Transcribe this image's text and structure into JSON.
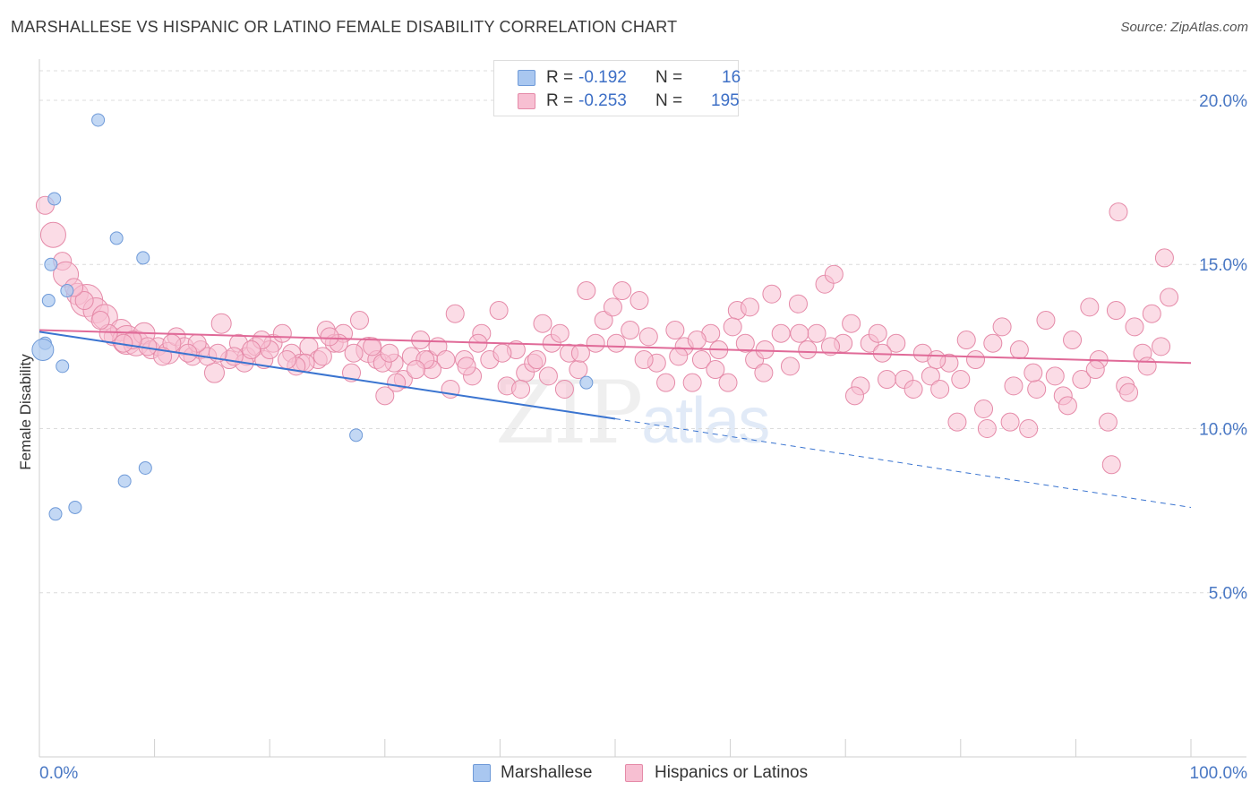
{
  "title": "MARSHALLESE VS HISPANIC OR LATINO FEMALE DISABILITY CORRELATION CHART",
  "source": "Source: ZipAtlas.com",
  "watermark": {
    "zip": "ZIP",
    "atlas": "atlas"
  },
  "legend": {
    "rows": [
      {
        "r_label": "R =",
        "r_value": "-0.192",
        "n_label": "N =",
        "n_value": "16",
        "color": "#a9c7f0",
        "border": "#6f9ad8"
      },
      {
        "r_label": "R =",
        "r_value": "-0.253",
        "n_label": "N =",
        "n_value": "195",
        "color": "#f7bfd2",
        "border": "#e58aa8"
      }
    ]
  },
  "bottom_legend": [
    {
      "label": "Marshallese",
      "color": "#a9c7f0",
      "border": "#6f9ad8"
    },
    {
      "label": "Hispanics or Latinos",
      "color": "#f7bfd2",
      "border": "#e58aa8"
    }
  ],
  "chart_data": {
    "type": "scatter",
    "title": "MARSHALLESE VS HISPANIC OR LATINO FEMALE DISABILITY CORRELATION CHART",
    "xlabel": "",
    "ylabel": "Female Disability",
    "xlim": [
      0,
      100
    ],
    "ylim": [
      0,
      20.9
    ],
    "x_tick_labels": [
      "0.0%",
      "100.0%"
    ],
    "y_ticks": [
      5,
      10,
      15,
      20
    ],
    "y_tick_labels": [
      "5.0%",
      "10.0%",
      "15.0%",
      "20.0%"
    ],
    "grid": "dashed horizontal",
    "legend_position": "top-center",
    "series": [
      {
        "name": "Marshallese",
        "color": "#a9c7f0",
        "stroke": "#6f9ad8",
        "trend": {
          "color": "#3a74d0",
          "x0": 0,
          "y0": 12.95,
          "x1": 50,
          "y1": 10.3,
          "dashed_to_x": 100,
          "dashed_to_y": 7.6
        },
        "points": [
          [
            5.1,
            19.4,
            7
          ],
          [
            1.3,
            17.0,
            7
          ],
          [
            6.7,
            15.8,
            7
          ],
          [
            9.0,
            15.2,
            7
          ],
          [
            1.0,
            15.0,
            7
          ],
          [
            2.4,
            14.2,
            7
          ],
          [
            0.8,
            13.9,
            7
          ],
          [
            0.5,
            12.6,
            7
          ],
          [
            0.3,
            12.4,
            12
          ],
          [
            2.0,
            11.9,
            7
          ],
          [
            47.5,
            11.4,
            7
          ],
          [
            27.5,
            9.8,
            7
          ],
          [
            9.2,
            8.8,
            7
          ],
          [
            7.4,
            8.4,
            7
          ],
          [
            3.1,
            7.6,
            7
          ],
          [
            1.4,
            7.4,
            7
          ]
        ]
      },
      {
        "name": "Hispanics or Latinos",
        "color": "#f7bfd2",
        "stroke": "#e58aa8",
        "trend": {
          "color": "#e06a98",
          "x0": 0,
          "y0": 13.0,
          "x1": 100,
          "y1": 12.0
        },
        "points": [
          [
            0.5,
            16.8,
            10
          ],
          [
            1.2,
            15.9,
            14
          ],
          [
            2.0,
            15.1,
            10
          ],
          [
            2.3,
            14.7,
            14
          ],
          [
            3.3,
            14.1,
            12
          ],
          [
            4.1,
            13.9,
            18
          ],
          [
            4.9,
            13.6,
            14
          ],
          [
            5.7,
            13.4,
            14
          ],
          [
            6.4,
            12.8,
            10
          ],
          [
            7.1,
            13.0,
            12
          ],
          [
            7.6,
            12.7,
            16
          ],
          [
            8.4,
            12.6,
            14
          ],
          [
            9.1,
            12.9,
            12
          ],
          [
            9.7,
            12.4,
            10
          ],
          [
            10.3,
            12.5,
            10
          ],
          [
            11.2,
            12.3,
            12
          ],
          [
            11.9,
            12.8,
            10
          ],
          [
            12.6,
            12.5,
            10
          ],
          [
            13.3,
            12.2,
            10
          ],
          [
            14.0,
            12.4,
            10
          ],
          [
            15.2,
            11.7,
            11
          ],
          [
            15.8,
            13.2,
            11
          ],
          [
            16.5,
            12.1,
            10
          ],
          [
            17.3,
            12.6,
            10
          ],
          [
            18.0,
            12.2,
            10
          ],
          [
            18.8,
            12.5,
            10
          ],
          [
            19.5,
            12.1,
            10
          ],
          [
            20.3,
            12.6,
            10
          ],
          [
            21.1,
            12.9,
            10
          ],
          [
            21.9,
            12.3,
            10
          ],
          [
            22.7,
            12.0,
            10
          ],
          [
            23.4,
            12.5,
            10
          ],
          [
            24.2,
            12.1,
            10
          ],
          [
            24.9,
            13.0,
            10
          ],
          [
            25.6,
            12.6,
            10
          ],
          [
            26.4,
            12.9,
            10
          ],
          [
            27.1,
            11.7,
            10
          ],
          [
            27.8,
            13.3,
            10
          ],
          [
            28.6,
            12.4,
            14
          ],
          [
            29.3,
            12.1,
            10
          ],
          [
            30.0,
            11.0,
            10
          ],
          [
            30.8,
            12.0,
            10
          ],
          [
            31.6,
            11.5,
            10
          ],
          [
            32.3,
            12.2,
            10
          ],
          [
            33.1,
            12.7,
            10
          ],
          [
            33.8,
            12.1,
            10
          ],
          [
            34.6,
            12.5,
            10
          ],
          [
            35.3,
            12.1,
            10
          ],
          [
            36.1,
            13.5,
            10
          ],
          [
            36.9,
            12.1,
            10
          ],
          [
            37.6,
            11.6,
            10
          ],
          [
            38.4,
            12.9,
            10
          ],
          [
            39.1,
            12.1,
            10
          ],
          [
            39.9,
            13.6,
            10
          ],
          [
            40.6,
            11.3,
            10
          ],
          [
            41.4,
            12.4,
            10
          ],
          [
            42.2,
            11.7,
            10
          ],
          [
            42.9,
            12.0,
            10
          ],
          [
            43.7,
            13.2,
            10
          ],
          [
            44.5,
            12.6,
            10
          ],
          [
            45.2,
            12.9,
            10
          ],
          [
            46.0,
            12.3,
            10
          ],
          [
            46.8,
            11.8,
            10
          ],
          [
            47.5,
            14.2,
            10
          ],
          [
            48.3,
            12.6,
            10
          ],
          [
            49.0,
            13.3,
            10
          ],
          [
            49.8,
            13.7,
            10
          ],
          [
            50.6,
            14.2,
            10
          ],
          [
            51.3,
            13.0,
            10
          ],
          [
            52.1,
            13.9,
            10
          ],
          [
            52.9,
            12.8,
            10
          ],
          [
            53.6,
            12.0,
            10
          ],
          [
            54.4,
            11.4,
            10
          ],
          [
            55.2,
            13.0,
            10
          ],
          [
            56.0,
            12.5,
            10
          ],
          [
            56.7,
            11.4,
            10
          ],
          [
            57.5,
            12.1,
            10
          ],
          [
            58.3,
            12.9,
            10
          ],
          [
            59.0,
            12.4,
            10
          ],
          [
            59.8,
            11.4,
            10
          ],
          [
            60.6,
            13.6,
            10
          ],
          [
            61.3,
            12.6,
            10
          ],
          [
            62.1,
            12.1,
            10
          ],
          [
            62.9,
            11.7,
            10
          ],
          [
            63.6,
            14.1,
            10
          ],
          [
            64.4,
            12.9,
            10
          ],
          [
            65.2,
            11.9,
            10
          ],
          [
            65.9,
            13.8,
            10
          ],
          [
            66.7,
            12.4,
            10
          ],
          [
            67.5,
            12.9,
            10
          ],
          [
            68.2,
            14.4,
            10
          ],
          [
            69.0,
            14.7,
            10
          ],
          [
            69.8,
            12.6,
            10
          ],
          [
            70.5,
            13.2,
            10
          ],
          [
            71.3,
            11.3,
            10
          ],
          [
            72.1,
            12.6,
            10
          ],
          [
            72.8,
            12.9,
            10
          ],
          [
            73.6,
            11.5,
            10
          ],
          [
            74.4,
            12.6,
            10
          ],
          [
            75.1,
            11.5,
            10
          ],
          [
            75.9,
            11.2,
            10
          ],
          [
            76.7,
            12.3,
            10
          ],
          [
            77.4,
            11.6,
            10
          ],
          [
            78.2,
            11.2,
            10
          ],
          [
            79.0,
            12.0,
            10
          ],
          [
            79.7,
            10.2,
            10
          ],
          [
            80.5,
            12.7,
            10
          ],
          [
            81.3,
            12.1,
            10
          ],
          [
            82.0,
            10.6,
            10
          ],
          [
            82.8,
            12.6,
            10
          ],
          [
            83.6,
            13.1,
            10
          ],
          [
            84.3,
            10.2,
            10
          ],
          [
            85.1,
            12.4,
            10
          ],
          [
            85.9,
            10.0,
            10
          ],
          [
            86.6,
            11.2,
            10
          ],
          [
            87.4,
            13.3,
            10
          ],
          [
            88.2,
            11.6,
            10
          ],
          [
            88.9,
            11.0,
            10
          ],
          [
            89.7,
            12.7,
            10
          ],
          [
            90.5,
            11.5,
            10
          ],
          [
            91.2,
            13.7,
            10
          ],
          [
            92.0,
            12.1,
            10
          ],
          [
            92.8,
            10.2,
            10
          ],
          [
            93.5,
            13.6,
            10
          ],
          [
            94.3,
            11.3,
            10
          ],
          [
            95.1,
            13.1,
            10
          ],
          [
            95.8,
            12.3,
            10
          ],
          [
            96.6,
            13.5,
            10
          ],
          [
            97.4,
            12.5,
            10
          ],
          [
            98.1,
            14.0,
            10
          ],
          [
            93.7,
            16.6,
            10
          ],
          [
            97.7,
            15.2,
            10
          ],
          [
            93.1,
            8.9,
            10
          ],
          [
            82.3,
            10.0,
            10
          ],
          [
            70.8,
            11.0,
            10
          ],
          [
            63.0,
            12.4,
            10
          ],
          [
            61.7,
            13.7,
            10
          ],
          [
            55.5,
            12.2,
            10
          ],
          [
            44.2,
            11.6,
            10
          ],
          [
            41.8,
            11.2,
            10
          ],
          [
            38.1,
            12.6,
            10
          ],
          [
            34.1,
            11.8,
            10
          ],
          [
            31.0,
            11.4,
            10
          ],
          [
            29.8,
            12.0,
            10
          ],
          [
            27.3,
            12.3,
            10
          ],
          [
            26.0,
            12.6,
            10
          ],
          [
            24.6,
            12.2,
            10
          ],
          [
            23.1,
            12.0,
            10
          ],
          [
            22.3,
            11.9,
            10
          ],
          [
            21.5,
            12.1,
            10
          ],
          [
            20.0,
            12.4,
            10
          ],
          [
            19.3,
            12.7,
            10
          ],
          [
            17.8,
            12.0,
            10
          ],
          [
            16.9,
            12.2,
            10
          ],
          [
            14.6,
            12.2,
            10
          ],
          [
            13.7,
            12.6,
            10
          ],
          [
            12.9,
            12.3,
            10
          ],
          [
            11.5,
            12.6,
            10
          ],
          [
            10.7,
            12.2,
            10
          ],
          [
            9.4,
            12.5,
            10
          ],
          [
            8.1,
            12.7,
            10
          ],
          [
            7.3,
            12.6,
            10
          ],
          [
            6.0,
            12.9,
            10
          ],
          [
            5.3,
            13.3,
            10
          ],
          [
            3.9,
            13.9,
            10
          ],
          [
            3.0,
            14.3,
            10
          ],
          [
            66.0,
            12.9,
            10
          ],
          [
            68.7,
            12.5,
            10
          ],
          [
            73.2,
            12.3,
            10
          ],
          [
            77.9,
            12.1,
            10
          ],
          [
            80.0,
            11.5,
            10
          ],
          [
            84.6,
            11.3,
            10
          ],
          [
            86.3,
            11.7,
            10
          ],
          [
            89.3,
            10.7,
            10
          ],
          [
            91.7,
            11.8,
            10
          ],
          [
            94.6,
            11.1,
            10
          ],
          [
            96.2,
            11.9,
            10
          ],
          [
            52.5,
            12.1,
            10
          ],
          [
            50.1,
            12.6,
            10
          ],
          [
            47.0,
            12.3,
            10
          ],
          [
            45.6,
            11.2,
            10
          ],
          [
            43.2,
            12.1,
            10
          ],
          [
            40.2,
            12.3,
            10
          ],
          [
            37.1,
            11.9,
            10
          ],
          [
            35.7,
            11.2,
            10
          ],
          [
            33.5,
            12.1,
            10
          ],
          [
            32.7,
            11.8,
            10
          ],
          [
            30.4,
            12.3,
            10
          ],
          [
            28.9,
            12.5,
            10
          ],
          [
            25.2,
            12.8,
            10
          ],
          [
            18.4,
            12.4,
            10
          ],
          [
            15.5,
            12.3,
            10
          ],
          [
            58.7,
            11.8,
            10
          ],
          [
            57.1,
            12.7,
            10
          ],
          [
            60.2,
            13.1,
            10
          ]
        ]
      }
    ]
  }
}
